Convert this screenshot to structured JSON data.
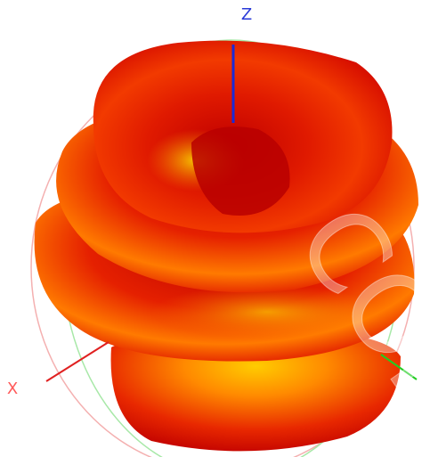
{
  "axes": {
    "z_label": "Z",
    "x_label": "X"
  },
  "watermark": "CON"
}
